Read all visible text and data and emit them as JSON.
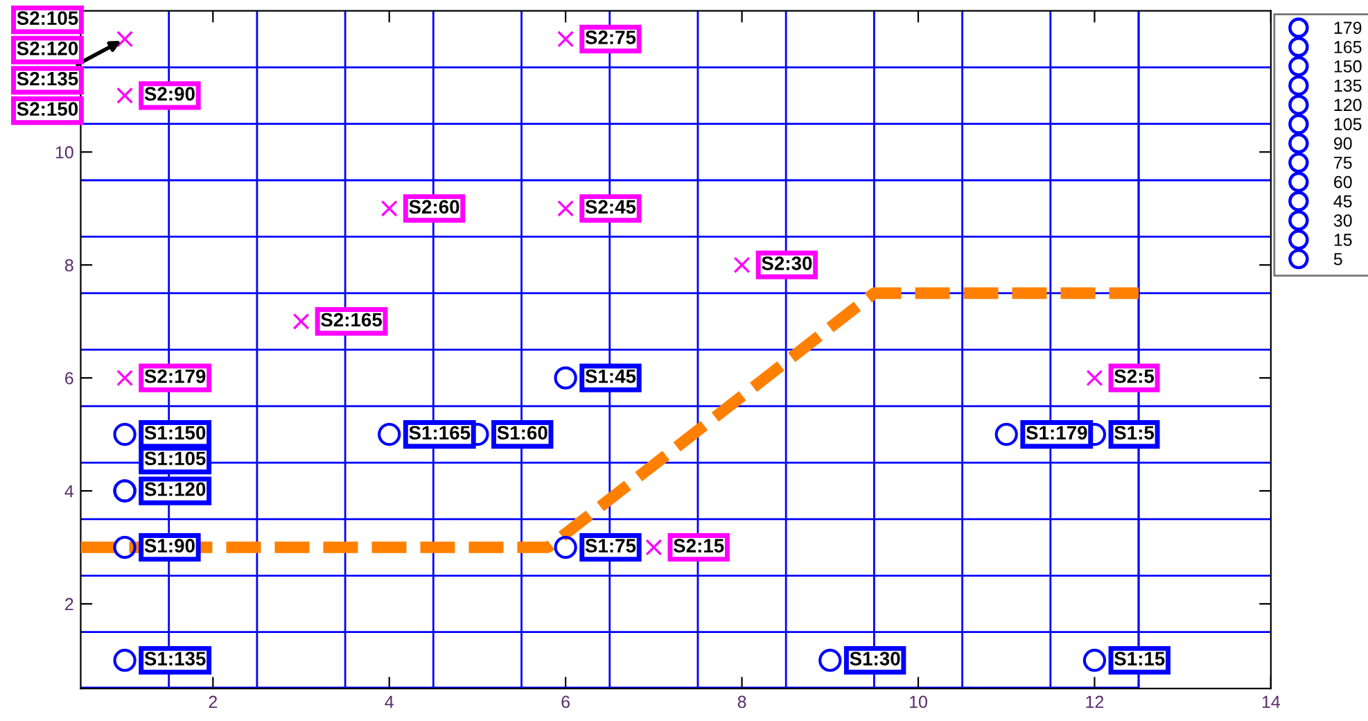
{
  "chart_data": {
    "type": "scatter",
    "xlim": [
      0.5,
      14
    ],
    "ylim": [
      0.5,
      12.5
    ],
    "xticks": [
      2,
      4,
      6,
      8,
      10,
      12,
      14,
      {
        "value": 1.5,
        "label": null
      },
      {
        "value": 2.5,
        "label": null
      },
      {
        "value": 3.5,
        "label": null
      },
      {
        "value": 4.5,
        "label": null
      },
      {
        "value": 5.5,
        "label": null
      },
      {
        "value": 6.5,
        "label": null
      },
      {
        "value": 7.5,
        "label": null
      },
      {
        "value": 8.5,
        "label": null
      },
      {
        "value": 9.5,
        "label": null
      },
      {
        "value": 10.5,
        "label": null
      },
      {
        "value": 11.5,
        "label": null
      },
      {
        "value": 12.5,
        "label": null
      }
    ],
    "yticks": [
      2,
      4,
      6,
      8,
      10,
      {
        "value": 1.5,
        "label": null
      },
      {
        "value": 2.5,
        "label": null
      },
      {
        "value": 3.5,
        "label": null
      },
      {
        "value": 4.5,
        "label": null
      },
      {
        "value": 5.5,
        "label": null
      },
      {
        "value": 6.5,
        "label": null
      },
      {
        "value": 7.5,
        "label": null
      },
      {
        "value": 8.5,
        "label": null
      },
      {
        "value": 9.5,
        "label": null
      },
      {
        "value": 10.5,
        "label": null
      },
      {
        "value": 11.5,
        "label": null
      }
    ],
    "grid": true,
    "legend": "top right",
    "series": [
      {
        "name": "179",
        "color": "#0000ff",
        "marker": "circle",
        "x": [
          11
        ],
        "values": [
          5
        ],
        "value_labels": [
          "S1:179"
        ]
      },
      {
        "name": "165",
        "color": "#0000ff",
        "marker": "circle",
        "x": [
          4
        ],
        "values": [
          5
        ],
        "value_labels": [
          "S1:165"
        ]
      },
      {
        "name": "150",
        "color": "#0000ff",
        "marker": "circle",
        "x": [
          1
        ],
        "values": [
          5
        ],
        "value_labels": [
          "S1:150"
        ]
      },
      {
        "name": "135",
        "color": "#0000ff",
        "marker": "circle",
        "x": [
          1
        ],
        "values": [
          1
        ],
        "value_labels": [
          "S1:135"
        ]
      },
      {
        "name": "120",
        "color": "#0000ff",
        "marker": "circle",
        "x": [
          1
        ],
        "values": [
          4
        ],
        "value_labels": [
          "S1:120"
        ]
      },
      {
        "name": "105",
        "color": "#0000ff",
        "marker": "circle",
        "x": [
          1
        ],
        "values": [
          4
        ],
        "value_labels": [
          "S1:105"
        ]
      },
      {
        "name": "90",
        "color": "#0000ff",
        "marker": "circle",
        "x": [
          1
        ],
        "values": [
          3
        ],
        "value_labels": [
          "S1:90"
        ]
      },
      {
        "name": "75",
        "color": "#0000ff",
        "marker": "circle",
        "x": [
          6
        ],
        "values": [
          3
        ],
        "value_labels": [
          "S1:75"
        ]
      },
      {
        "name": "60",
        "color": "#0000ff",
        "marker": "circle",
        "x": [
          5
        ],
        "values": [
          5
        ],
        "value_labels": [
          "S1:60"
        ]
      },
      {
        "name": "45",
        "color": "#0000ff",
        "marker": "circle",
        "x": [
          6
        ],
        "values": [
          6
        ],
        "value_labels": [
          "S1:45"
        ]
      },
      {
        "name": "30",
        "color": "#0000ff",
        "marker": "circle",
        "x": [
          9
        ],
        "values": [
          1
        ],
        "value_labels": [
          "S1:30"
        ]
      },
      {
        "name": "15",
        "color": "#0000ff",
        "marker": "circle",
        "x": [
          12
        ],
        "values": [
          1
        ],
        "value_labels": [
          "S1:15"
        ]
      },
      {
        "name": "5",
        "color": "#0000ff",
        "marker": "circle",
        "x": [
          12
        ],
        "values": [
          5
        ],
        "value_labels": [
          "S1:5"
        ]
      },
      {
        "color": "#ff00ff",
        "marker": "cross",
        "x": [
          1,
          1,
          6,
          4,
          6,
          8,
          3,
          1,
          12,
          7
        ],
        "values": [
          12,
          11,
          12,
          9,
          9,
          8,
          7,
          6,
          6,
          3
        ],
        "value_labels": [
          null,
          "S2:90",
          "S2:75",
          "S2:60",
          "S2:45",
          "S2:30",
          "S2:165",
          "S2:179",
          "S2:5",
          "S2:15"
        ]
      },
      {
        "type": "line",
        "color": "#ff8000",
        "line_style": "dashed",
        "marker": "none",
        "x": [
          0.5,
          5.8,
          9.5,
          12.5
        ],
        "values": [
          3,
          3,
          7.5,
          7.5
        ]
      }
    ],
    "annotations": [
      "S2:105",
      "S2:120",
      {
        "text": "S2:135",
        "x": 1,
        "y": 12
      },
      "S2:150"
    ]
  }
}
